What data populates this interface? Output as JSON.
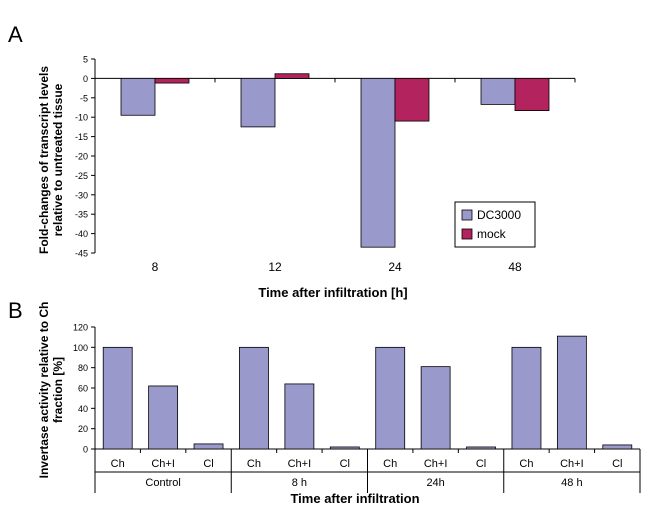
{
  "chart_data": [
    {
      "panel_label": "A",
      "type": "bar",
      "categories": [
        "8",
        "12",
        "24",
        "48"
      ],
      "series": [
        {
          "name": "DC3000",
          "values": [
            -9.5,
            -12.5,
            -43.5,
            -6.7
          ],
          "color": "#9999cc"
        },
        {
          "name": "mock",
          "values": [
            -1.2,
            1.2,
            -11.0,
            -8.3
          ],
          "color": "#b3245e"
        }
      ],
      "xlabel": "Time after infiltration [h]",
      "ylabel_lines": [
        "Fold-changes of transcript levels",
        "relative to untreated tissue"
      ],
      "ylim": [
        -45,
        5
      ],
      "yticks": [
        "5",
        "0",
        "-5",
        "-10",
        "-15",
        "-20",
        "-25",
        "-30",
        "-35",
        "-40",
        "-45"
      ],
      "grid": false,
      "legend": "bottom-right"
    },
    {
      "panel_label": "B",
      "type": "bar",
      "groups": [
        "Control",
        "8 h",
        "24h",
        "48 h"
      ],
      "subcategories": [
        "Ch",
        "Ch+I",
        "Cl"
      ],
      "values": [
        [
          100,
          62,
          5
        ],
        [
          100,
          64,
          2
        ],
        [
          100,
          81,
          2
        ],
        [
          100,
          111,
          4
        ]
      ],
      "color": "#9999cc",
      "xlabel": "Time after infiltration",
      "ylabel_lines": [
        "Invertase activity relative to Ch",
        "fraction [%]"
      ],
      "ylim": [
        0,
        120
      ],
      "yticks": [
        "120",
        "100",
        "80",
        "60",
        "40",
        "20",
        "0"
      ],
      "grid": false
    }
  ]
}
